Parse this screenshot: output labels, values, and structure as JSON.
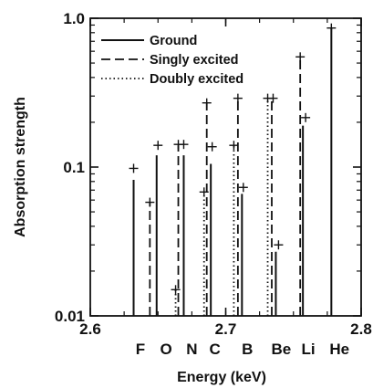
{
  "chart_data": {
    "type": "bar",
    "xlabel": "Energy (keV)",
    "ylabel": "Absorption strength",
    "xlim": [
      2.6,
      2.8
    ],
    "ylim": [
      0.01,
      1.0
    ],
    "yscale": "log",
    "x_ticks": [
      {
        "value": 2.6,
        "label": "2.6"
      },
      {
        "value": 2.7,
        "label": "2.7"
      },
      {
        "value": 2.8,
        "label": "2.8"
      }
    ],
    "y_ticks": [
      {
        "value": 0.01,
        "label": "0.01"
      },
      {
        "value": 0.1,
        "label": "0.1"
      },
      {
        "value": 1.0,
        "label": "1.0"
      }
    ],
    "legend_position": "top-left",
    "series": [
      {
        "name": "Ground",
        "style": "solid",
        "points": [
          {
            "x": 2.632,
            "y": 0.082
          },
          {
            "x": 2.649,
            "y": 0.12
          },
          {
            "x": 2.669,
            "y": 0.12
          },
          {
            "x": 2.689,
            "y": 0.105
          },
          {
            "x": 2.712,
            "y": 0.066
          },
          {
            "x": 2.737,
            "y": 0.027
          },
          {
            "x": 2.757,
            "y": 0.19
          },
          {
            "x": 2.778,
            "y": 0.86
          }
        ]
      },
      {
        "name": "Singly excited",
        "style": "dashed",
        "points": [
          {
            "x": 2.644,
            "y": 0.058
          },
          {
            "x": 2.665,
            "y": 0.14
          },
          {
            "x": 2.686,
            "y": 0.27
          },
          {
            "x": 2.709,
            "y": 0.29
          },
          {
            "x": 2.734,
            "y": 0.29
          },
          {
            "x": 2.755,
            "y": 0.55
          }
        ]
      },
      {
        "name": "Doubly excited",
        "style": "dotted",
        "points": [
          {
            "x": 2.663,
            "y": 0.015
          },
          {
            "x": 2.684,
            "y": 0.068
          },
          {
            "x": 2.706,
            "y": 0.14
          },
          {
            "x": 2.731,
            "y": 0.29
          }
        ]
      }
    ],
    "markers": [
      {
        "x": 2.632,
        "y": 0.098
      },
      {
        "x": 2.644,
        "y": 0.058
      },
      {
        "x": 2.65,
        "y": 0.14
      },
      {
        "x": 2.665,
        "y": 0.142
      },
      {
        "x": 2.669,
        "y": 0.142
      },
      {
        "x": 2.686,
        "y": 0.27
      },
      {
        "x": 2.69,
        "y": 0.137
      },
      {
        "x": 2.684,
        "y": 0.068
      },
      {
        "x": 2.663,
        "y": 0.015
      },
      {
        "x": 2.706,
        "y": 0.14
      },
      {
        "x": 2.709,
        "y": 0.29
      },
      {
        "x": 2.713,
        "y": 0.073
      },
      {
        "x": 2.731,
        "y": 0.29
      },
      {
        "x": 2.735,
        "y": 0.29
      },
      {
        "x": 2.739,
        "y": 0.03
      },
      {
        "x": 2.755,
        "y": 0.55
      },
      {
        "x": 2.759,
        "y": 0.215
      },
      {
        "x": 2.778,
        "y": 0.86
      }
    ],
    "element_labels": [
      {
        "x": 2.637,
        "label": "F"
      },
      {
        "x": 2.656,
        "label": "O"
      },
      {
        "x": 2.675,
        "label": "N"
      },
      {
        "x": 2.692,
        "label": "C"
      },
      {
        "x": 2.716,
        "label": "B"
      },
      {
        "x": 2.741,
        "label": "Be"
      },
      {
        "x": 2.761,
        "label": "Li"
      },
      {
        "x": 2.784,
        "label": "He"
      }
    ]
  }
}
